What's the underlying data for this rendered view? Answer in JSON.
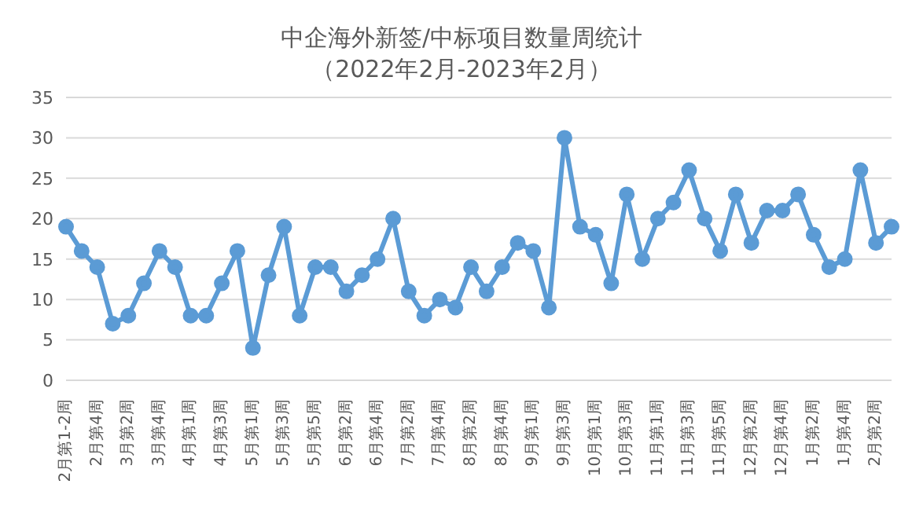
{
  "chart_data": {
    "type": "line",
    "title": "中企海外新签/中标项目数量周统计",
    "subtitle": "（2022年2月-2023年2月）",
    "categories": [
      "2月第1-2周",
      null,
      "2月第4周",
      null,
      "3月第2周",
      null,
      "3月第4周",
      null,
      "4月第1周",
      null,
      "4月第3周",
      null,
      "5月第1周",
      null,
      "5月第3周",
      null,
      "5月第5周",
      null,
      "6月第2周",
      null,
      "6月第4周",
      null,
      "7月第2周",
      null,
      "7月第4周",
      null,
      "8月第2周",
      null,
      "8月第4周",
      null,
      "9月第1周",
      null,
      "9月第3周",
      null,
      "10月第1周",
      null,
      "10月第3周",
      null,
      "11月第1周",
      null,
      "11月第3周",
      null,
      "11月第5周",
      null,
      "12月第2周",
      null,
      "12月第4周",
      null,
      "1月第2周",
      null,
      "1月第4周",
      null,
      "2月第2周",
      null
    ],
    "series": [
      {
        "color": "#5b9bd5",
        "values": [
          19,
          16,
          14,
          7,
          8,
          12,
          16,
          14,
          8,
          8,
          12,
          16,
          4,
          13,
          19,
          8,
          14,
          14,
          11,
          13,
          15,
          20,
          11,
          8,
          10,
          9,
          14,
          11,
          14,
          17,
          16,
          9,
          30,
          19,
          18,
          12,
          23,
          15,
          20,
          22,
          26,
          20,
          16,
          23,
          17,
          21,
          21,
          23,
          18,
          14,
          15,
          26,
          17,
          19
        ]
      }
    ],
    "ylim": [
      0,
      35
    ],
    "yticks": [
      0,
      5,
      10,
      15,
      20,
      25,
      30,
      35
    ],
    "grid": "y",
    "marker": "circle",
    "line_style": "solid"
  }
}
